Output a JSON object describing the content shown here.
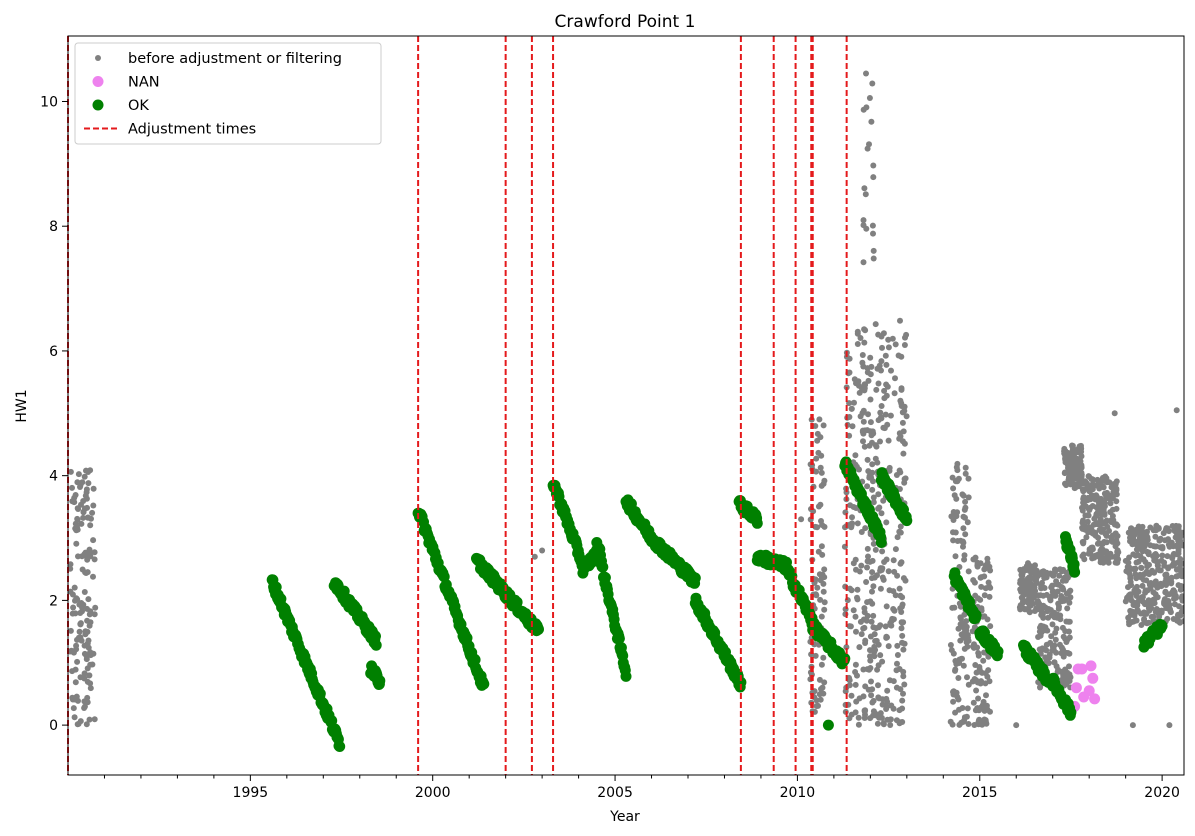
{
  "chart_data": {
    "type": "scatter",
    "title": "Crawford Point 1",
    "xlabel": "Year",
    "ylabel": "HW1",
    "xlim": [
      1990.0,
      2020.6
    ],
    "ylim": [
      -0.8,
      11.05
    ],
    "x_ticks": [
      1995,
      2000,
      2005,
      2010,
      2015,
      2020
    ],
    "x_minor_ticks": [
      1991,
      1992,
      1993,
      1994,
      1996,
      1997,
      1998,
      1999,
      2001,
      2002,
      2003,
      2004,
      2006,
      2007,
      2008,
      2009,
      2011,
      2012,
      2013,
      2014,
      2016,
      2017,
      2018,
      2019
    ],
    "y_ticks": [
      0,
      2,
      4,
      6,
      8,
      10
    ],
    "grid": false,
    "legend_position": "top-left",
    "legend": [
      {
        "label": "before adjustment or filtering",
        "marker": "small-dot",
        "color": "#808080"
      },
      {
        "label": "NAN",
        "marker": "dot",
        "color": "#ee82ee"
      },
      {
        "label": "OK",
        "marker": "dot",
        "color": "#008000"
      },
      {
        "label": "Adjustment times",
        "marker": "dashed-line",
        "color": "#e41a1c"
      }
    ],
    "adjustment_times": [
      1990.0,
      1999.6,
      2002.0,
      2002.72,
      2003.3,
      2008.45,
      2009.35,
      2009.95,
      2010.38,
      2010.42,
      2011.35
    ],
    "series": [
      {
        "name": "before adjustment or filtering",
        "color": "#808080",
        "style": "bands",
        "bands": [
          {
            "x": [
              1990.05,
              1990.75
            ],
            "y": [
              0.0,
              4.1
            ]
          },
          {
            "x": [
              2010.35,
              2010.75
            ],
            "y": [
              0.2,
              5.0
            ]
          },
          {
            "x": [
              2011.3,
              2013.0
            ],
            "y": [
              0.0,
              6.5
            ]
          },
          {
            "x": [
              2011.8,
              2012.1
            ],
            "y": [
              0.0,
              10.5
            ]
          },
          {
            "x": [
              2014.2,
              2014.7
            ],
            "y": [
              0.0,
              4.6
            ]
          },
          {
            "x": [
              2014.8,
              2015.3
            ],
            "y": [
              0.0,
              2.7
            ]
          },
          {
            "x": [
              2016.1,
              2016.6
            ],
            "y": [
              1.8,
              2.6
            ]
          },
          {
            "x": [
              2016.6,
              2017.5
            ],
            "y": [
              0.6,
              2.5
            ]
          },
          {
            "x": [
              2017.3,
              2017.8
            ],
            "y": [
              3.8,
              4.5
            ]
          },
          {
            "x": [
              2017.8,
              2018.8
            ],
            "y": [
              2.6,
              4.0
            ]
          },
          {
            "x": [
              2019.0,
              2020.6
            ],
            "y": [
              1.6,
              3.2
            ]
          }
        ],
        "points": [
          [
            2002.8,
            2.7
          ],
          [
            2003.0,
            2.8
          ],
          [
            2010.1,
            3.3
          ],
          [
            2018.7,
            5.0
          ],
          [
            2020.4,
            5.05
          ],
          [
            2016.0,
            0.0
          ],
          [
            2019.2,
            0.0
          ],
          [
            2020.2,
            0.0
          ]
        ]
      },
      {
        "name": "NAN",
        "color": "#ee82ee",
        "points": [
          [
            2017.6,
            0.3
          ],
          [
            2017.65,
            0.6
          ],
          [
            2017.7,
            0.9
          ],
          [
            2017.8,
            0.9
          ],
          [
            2017.85,
            0.45
          ],
          [
            2018.0,
            0.55
          ],
          [
            2018.05,
            0.95
          ],
          [
            2018.1,
            0.75
          ],
          [
            2018.15,
            0.42
          ]
        ]
      },
      {
        "name": "OK",
        "color": "#008000",
        "segments": [
          {
            "x": [
              1995.6,
              1997.45
            ],
            "y": [
              2.3,
              -0.3
            ]
          },
          {
            "x": [
              1997.3,
              1998.45
            ],
            "y": [
              2.3,
              1.35
            ]
          },
          {
            "x": [
              1998.3,
              1998.55
            ],
            "y": [
              0.9,
              0.7
            ]
          },
          {
            "x": [
              1999.6,
              2001.4
            ],
            "y": [
              3.45,
              0.6
            ]
          },
          {
            "x": [
              2001.2,
              2002.9
            ],
            "y": [
              2.65,
              1.5
            ]
          },
          {
            "x": [
              2003.3,
              2004.1
            ],
            "y": [
              3.9,
              2.6
            ]
          },
          {
            "x": [
              2004.1,
              2004.6
            ],
            "y": [
              2.5,
              2.8
            ]
          },
          {
            "x": [
              2004.5,
              2005.3
            ],
            "y": [
              2.9,
              0.85
            ]
          },
          {
            "x": [
              2005.3,
              2006.0
            ],
            "y": [
              3.6,
              3.0
            ]
          },
          {
            "x": [
              2006.0,
              2007.2
            ],
            "y": [
              3.0,
              2.3
            ]
          },
          {
            "x": [
              2007.2,
              2008.45
            ],
            "y": [
              2.0,
              0.65
            ]
          },
          {
            "x": [
              2008.4,
              2008.9
            ],
            "y": [
              3.55,
              3.3
            ]
          },
          {
            "x": [
              2008.9,
              2009.7
            ],
            "y": [
              2.7,
              2.55
            ]
          },
          {
            "x": [
              2009.7,
              2010.4
            ],
            "y": [
              2.5,
              1.7
            ]
          },
          {
            "x": [
              2010.4,
              2011.3
            ],
            "y": [
              1.6,
              1.0
            ]
          },
          {
            "x": [
              2011.3,
              2012.3
            ],
            "y": [
              4.2,
              3.0
            ]
          },
          {
            "x": [
              2012.3,
              2013.0
            ],
            "y": [
              4.0,
              3.3
            ]
          },
          {
            "x": [
              2014.3,
              2014.9
            ],
            "y": [
              2.4,
              1.7
            ]
          },
          {
            "x": [
              2015.0,
              2015.5
            ],
            "y": [
              1.5,
              1.15
            ]
          },
          {
            "x": [
              2016.2,
              2016.9
            ],
            "y": [
              1.25,
              0.7
            ]
          },
          {
            "x": [
              2017.0,
              2017.5
            ],
            "y": [
              0.7,
              0.2
            ]
          },
          {
            "x": [
              2017.35,
              2017.6
            ],
            "y": [
              3.0,
              2.5
            ]
          },
          {
            "x": [
              2019.5,
              2020.0
            ],
            "y": [
              1.3,
              1.6
            ]
          }
        ],
        "points": [
          [
            2010.85,
            0.0
          ]
        ]
      }
    ]
  }
}
